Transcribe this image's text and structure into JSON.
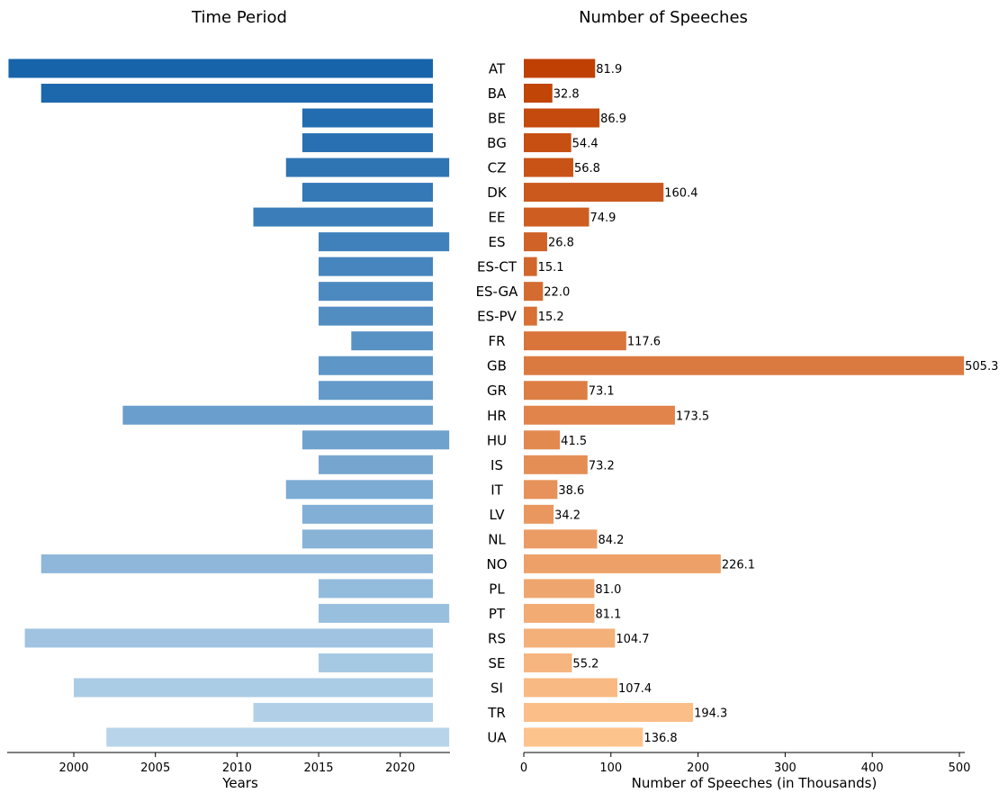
{
  "chart_data": [
    {
      "type": "bar",
      "orientation": "horizontal-range",
      "title": "Time Period",
      "xlabel": "Years",
      "ylabel": "",
      "xlim": [
        1996,
        2024
      ],
      "xticks": [
        "2000",
        "2005",
        "2010",
        "2015",
        "2020"
      ],
      "categories": [
        "AT",
        "BA",
        "BE",
        "BG",
        "CZ",
        "DK",
        "EE",
        "ES",
        "ES-CT",
        "ES-GA",
        "ES-PV",
        "FR",
        "GB",
        "GR",
        "HR",
        "HU",
        "IS",
        "IT",
        "LV",
        "NL",
        "NO",
        "PL",
        "PT",
        "RS",
        "SE",
        "SI",
        "TR",
        "UA"
      ],
      "start": [
        1996,
        1998,
        2014,
        2014,
        2013,
        2014,
        2011,
        2015,
        2015,
        2015,
        2015,
        2017,
        2015,
        2015,
        2003,
        2014,
        2015,
        2013,
        2014,
        2014,
        1998,
        2015,
        2015,
        1997,
        2015,
        2000,
        2011,
        2002
      ],
      "end": [
        2022,
        2022,
        2022,
        2022,
        2023,
        2022,
        2022,
        2023,
        2022,
        2022,
        2022,
        2022,
        2022,
        2022,
        2022,
        2023,
        2022,
        2022,
        2022,
        2022,
        2022,
        2022,
        2023,
        2022,
        2022,
        2022,
        2022,
        2023
      ],
      "colors": {
        "dark": "#1764ab",
        "light": "#b7d4ea"
      }
    },
    {
      "type": "bar",
      "orientation": "horizontal",
      "title": "Number of Speeches",
      "xlabel": "Number of Speeches (in Thousands)",
      "ylabel": "",
      "xlim": [
        0,
        520
      ],
      "xticks": [
        "0",
        "100",
        "200",
        "300",
        "400",
        "500"
      ],
      "categories": [
        "AT",
        "BA",
        "BE",
        "BG",
        "CZ",
        "DK",
        "EE",
        "ES",
        "ES-CT",
        "ES-GA",
        "ES-PV",
        "FR",
        "GB",
        "GR",
        "HR",
        "HU",
        "IS",
        "IT",
        "LV",
        "NL",
        "NO",
        "PL",
        "PT",
        "RS",
        "SE",
        "SI",
        "TR",
        "UA"
      ],
      "values": [
        81.9,
        32.8,
        86.9,
        54.4,
        56.8,
        160.4,
        74.9,
        26.8,
        15.1,
        22.0,
        15.2,
        117.6,
        505.3,
        73.1,
        173.5,
        41.5,
        73.2,
        38.6,
        34.2,
        84.2,
        226.1,
        81.0,
        81.1,
        104.7,
        55.2,
        107.4,
        194.3,
        136.8
      ],
      "labels": [
        "81.9",
        "32.8",
        "86.9",
        "54.4",
        "56.8",
        "160.4",
        "74.9",
        "26.8",
        "15.1",
        "22.0",
        "15.2",
        "117.6",
        "505.3",
        "73.1",
        "173.5",
        "41.5",
        "73.2",
        "38.6",
        "34.2",
        "84.2",
        "226.1",
        "81.0",
        "81.1",
        "104.7",
        "55.2",
        "107.4",
        "194.3",
        "136.8"
      ],
      "colors": {
        "dark": "#c04003",
        "light": "#fdc38d"
      }
    }
  ]
}
